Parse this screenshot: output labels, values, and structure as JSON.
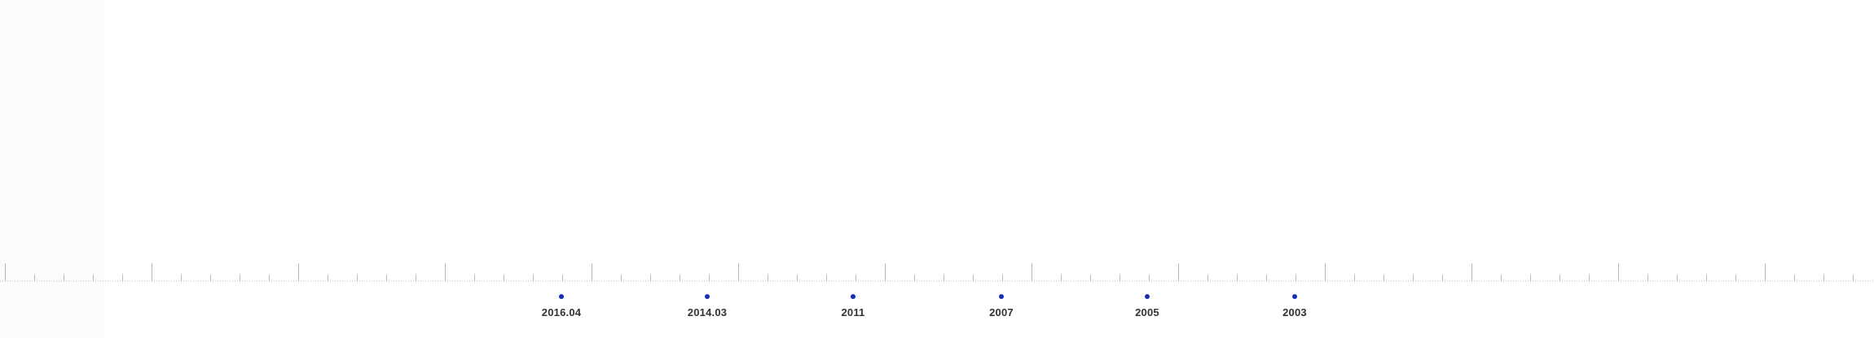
{
  "timeline": {
    "events": [
      {
        "label": "2016.04"
      },
      {
        "label": "2014.03"
      },
      {
        "label": "2011"
      },
      {
        "label": "2007"
      },
      {
        "label": "2005"
      },
      {
        "label": "2003"
      }
    ],
    "dot_color": "#1a2fb8",
    "tick_color": "#b8b8b8"
  }
}
